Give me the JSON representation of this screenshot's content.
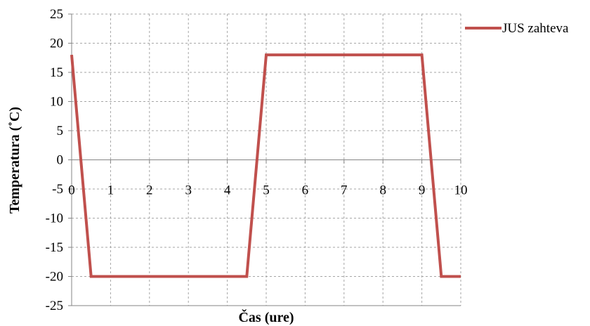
{
  "chart_data": {
    "type": "line",
    "title": "",
    "xlabel": "Čas (ure)",
    "ylabel": "Temperatura (˚C)",
    "xlim": [
      0,
      10
    ],
    "ylim": [
      -25,
      25
    ],
    "x_ticks": [
      0,
      1,
      2,
      3,
      4,
      5,
      6,
      7,
      8,
      9,
      10
    ],
    "y_ticks": [
      -25,
      -20,
      -15,
      -10,
      -5,
      0,
      5,
      10,
      15,
      20,
      25
    ],
    "grid": true,
    "legend_position": "top-right",
    "series": [
      {
        "name": "JUS zahteva",
        "color": "#c0504d",
        "x": [
          0,
          0.5,
          4.5,
          5,
          9,
          9.5,
          10
        ],
        "y": [
          18,
          -20,
          -20,
          18,
          18,
          -20,
          -20
        ]
      }
    ]
  }
}
